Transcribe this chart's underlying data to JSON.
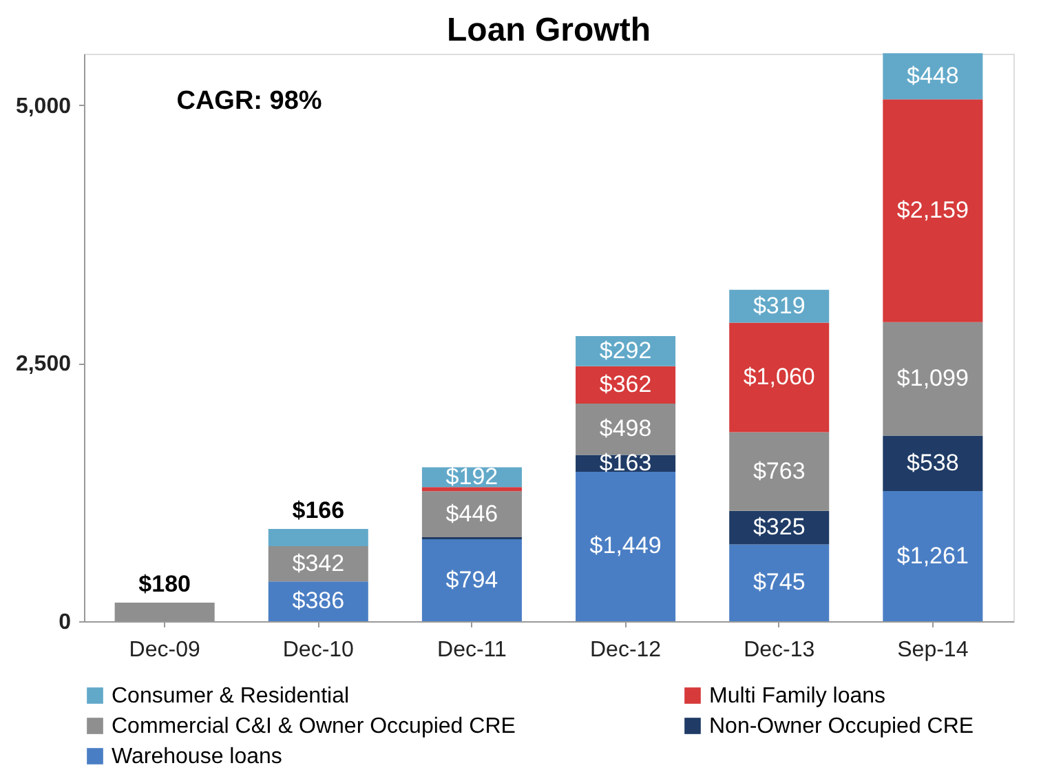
{
  "chart_data": {
    "type": "bar",
    "title": "Loan Growth",
    "stacked": true,
    "categories": [
      "Dec-09",
      "Dec-10",
      "Dec-11",
      "Dec-12",
      "Dec-13",
      "Sep-14"
    ],
    "series": [
      {
        "name": "Warehouse loans",
        "color": "#4a7ec4",
        "values": [
          null,
          386,
          794,
          1449,
          745,
          1261
        ],
        "value_labels": [
          null,
          "$386",
          "$794",
          "$1,449",
          "$745",
          "$1,261"
        ]
      },
      {
        "name": "Non-Owner Occupied CRE",
        "color": "#1f3b66",
        "values": [
          null,
          null,
          20,
          163,
          325,
          538
        ],
        "value_labels": [
          null,
          null,
          null,
          "$163",
          "$325",
          "$538"
        ]
      },
      {
        "name": "Commercial C&I & Owner Occupied CRE",
        "color": "#8f8f8f",
        "values": [
          180,
          342,
          446,
          498,
          763,
          1099
        ],
        "value_labels": [
          "$180",
          "$342",
          "$446",
          "$498",
          "$763",
          "$1,099"
        ]
      },
      {
        "name": "Multi Family loans",
        "color": "#d63a3a",
        "values": [
          null,
          null,
          40,
          362,
          1060,
          2159
        ],
        "value_labels": [
          null,
          null,
          null,
          "$362",
          "$1,060",
          "$2,159"
        ]
      },
      {
        "name": "Consumer & Residential",
        "color": "#62a9c9",
        "values": [
          null,
          166,
          192,
          292,
          319,
          448
        ],
        "value_labels": [
          null,
          "$166",
          "$192",
          "$292",
          "$319",
          "$448"
        ]
      }
    ],
    "ylim": [
      0,
      5500
    ],
    "yticks": [
      0,
      {
        "value": 2500,
        "label": "2,500"
      },
      {
        "value": 5000,
        "label": "5,000"
      }
    ],
    "grid": false,
    "legend": "bottom",
    "annotations": [
      "CAGR:  98%"
    ]
  }
}
